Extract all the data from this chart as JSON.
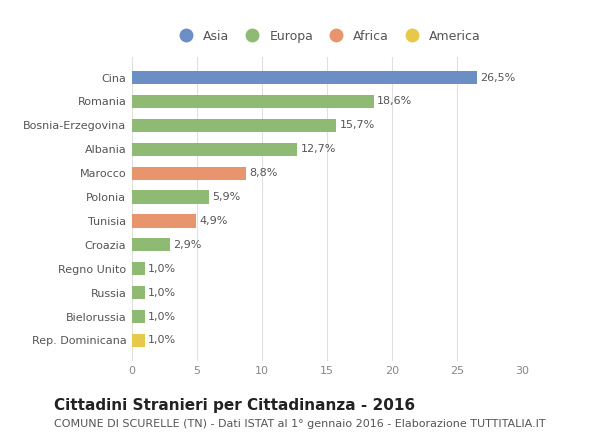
{
  "categories": [
    "Rep. Dominicana",
    "Bielorussia",
    "Russia",
    "Regno Unito",
    "Croazia",
    "Tunisia",
    "Polonia",
    "Marocco",
    "Albania",
    "Bosnia-Erzegovina",
    "Romania",
    "Cina"
  ],
  "values": [
    1.0,
    1.0,
    1.0,
    1.0,
    2.9,
    4.9,
    5.9,
    8.8,
    12.7,
    15.7,
    18.6,
    26.5
  ],
  "labels": [
    "1,0%",
    "1,0%",
    "1,0%",
    "1,0%",
    "2,9%",
    "4,9%",
    "5,9%",
    "8,8%",
    "12,7%",
    "15,7%",
    "18,6%",
    "26,5%"
  ],
  "colors": [
    "#e8c84a",
    "#8fba74",
    "#8fba74",
    "#8fba74",
    "#8fba74",
    "#e8956d",
    "#8fba74",
    "#e8956d",
    "#8fba74",
    "#8fba74",
    "#8fba74",
    "#6b8ec4"
  ],
  "continent_colors": {
    "Asia": "#6b8ec4",
    "Europa": "#8fba74",
    "Africa": "#e8956d",
    "America": "#e8c84a"
  },
  "xlim": [
    0,
    30
  ],
  "xticks": [
    0,
    5,
    10,
    15,
    20,
    25,
    30
  ],
  "title": "Cittadini Stranieri per Cittadinanza - 2016",
  "subtitle": "COMUNE DI SCURELLE (TN) - Dati ISTAT al 1° gennaio 2016 - Elaborazione TUTTITALIA.IT",
  "bg_color": "#ffffff",
  "bar_height": 0.55,
  "title_fontsize": 11,
  "subtitle_fontsize": 8,
  "label_fontsize": 8,
  "tick_fontsize": 8,
  "legend_fontsize": 9
}
